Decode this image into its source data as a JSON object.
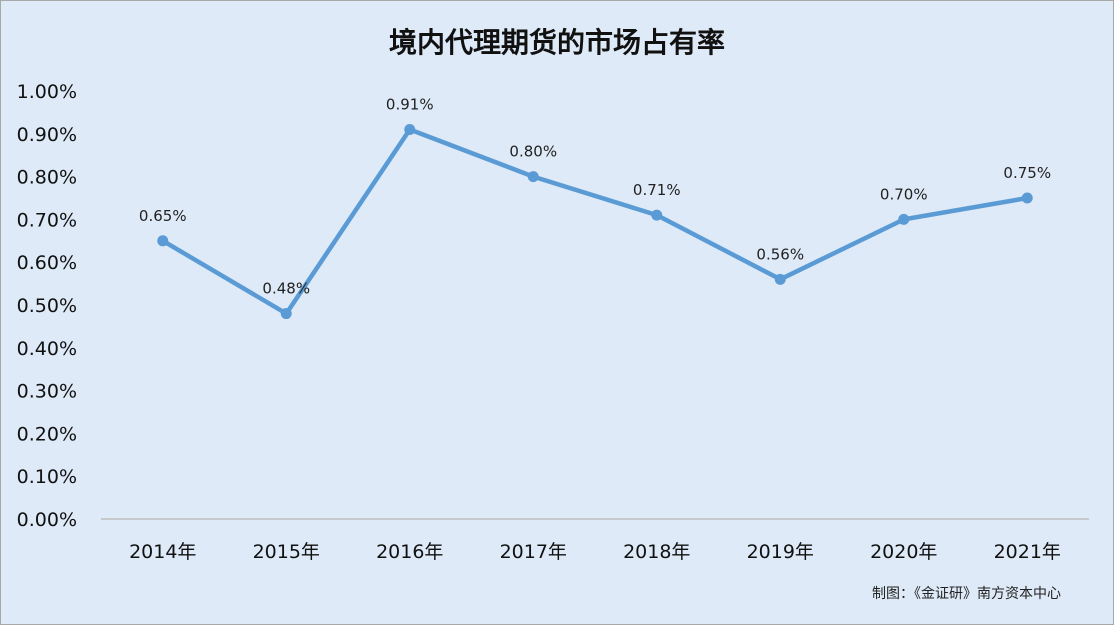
{
  "chart_data": {
    "type": "line",
    "title": "境内代理期货的市场占有率",
    "xlabel": "",
    "ylabel": "",
    "categories": [
      "2014年",
      "2015年",
      "2016年",
      "2017年",
      "2018年",
      "2019年",
      "2020年",
      "2021年"
    ],
    "series": [
      {
        "values": [
          0.65,
          0.48,
          0.91,
          0.8,
          0.71,
          0.56,
          0.7,
          0.75
        ],
        "data_labels": [
          "0.65%",
          "0.48%",
          "0.91%",
          "0.80%",
          "0.71%",
          "0.56%",
          "0.70%",
          "0.75%"
        ],
        "color": "#5b9bd5"
      }
    ],
    "ylim": [
      0,
      1.0
    ],
    "y_unit": "%",
    "yticks": [
      "0.00%",
      "0.10%",
      "0.20%",
      "0.30%",
      "0.40%",
      "0.50%",
      "0.60%",
      "0.70%",
      "0.80%",
      "0.90%",
      "1.00%"
    ],
    "grid": false,
    "legend": "none",
    "background_color": "#deeaf7",
    "axis_color": "#bfbfbf"
  },
  "footer": {
    "source": "制图：《金证研》南方资本中心"
  }
}
